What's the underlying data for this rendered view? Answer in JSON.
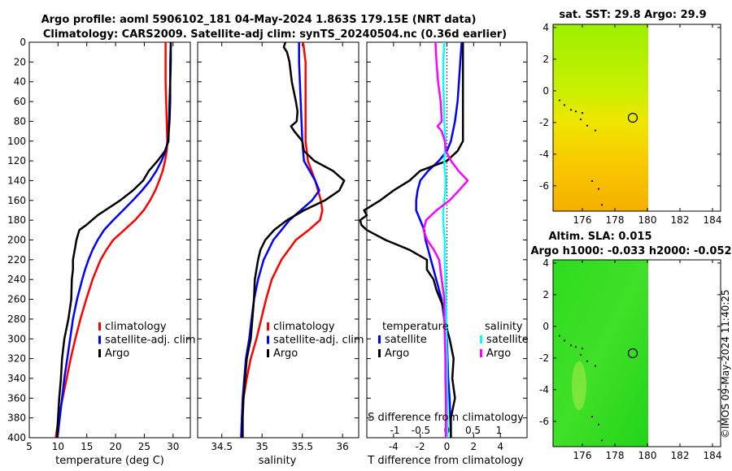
{
  "header": {
    "line1": "Argo profile: aoml 5906102_181 04-May-2024 1.863S 179.15E (NRT data)",
    "line2": "Climatology: CARS2009. Satellite-adj clim: synTS_20240504.nc (0.36d earlier)"
  },
  "stamp": "©IMOS 09-May-2024 11:40:25",
  "colors": {
    "climatology": "#ff0000",
    "satellite": "#0000ff",
    "argo": "#000000",
    "sat_s": "#00ffff",
    "argo_s": "#ff00ff"
  },
  "chart_data": [
    {
      "id": "temperature",
      "type": "line",
      "xlabel": "temperature (deg C)",
      "xlim": [
        5,
        33
      ],
      "ylim": [
        0,
        400
      ],
      "xticks": [
        5,
        10,
        15,
        20,
        25,
        30
      ],
      "yticks": [
        0,
        20,
        40,
        60,
        80,
        100,
        120,
        140,
        160,
        180,
        200,
        220,
        240,
        260,
        280,
        300,
        320,
        340,
        360,
        380,
        400
      ],
      "legend": [
        "climatology",
        "satellite-adj. clim",
        "Argo"
      ],
      "series": [
        {
          "name": "climatology",
          "color": "#ff0000",
          "depth": [
            0,
            20,
            40,
            60,
            80,
            100,
            110,
            120,
            130,
            140,
            150,
            160,
            170,
            180,
            190,
            200,
            210,
            220,
            230,
            240,
            260,
            280,
            300,
            320,
            340,
            360,
            380,
            400
          ],
          "values": [
            28.7,
            28.7,
            28.7,
            28.8,
            28.9,
            29.0,
            28.9,
            28.6,
            28.2,
            27.6,
            26.9,
            26.0,
            24.9,
            23.4,
            21.5,
            19.6,
            18.4,
            17.4,
            16.7,
            16.0,
            14.9,
            13.9,
            13.0,
            12.2,
            11.5,
            10.8,
            10.1,
            9.6
          ]
        },
        {
          "name": "satellite-adj. clim",
          "color": "#0000ff",
          "depth": [
            0,
            20,
            40,
            60,
            80,
            100,
            110,
            120,
            130,
            140,
            150,
            160,
            170,
            180,
            190,
            200,
            210,
            220,
            230,
            240,
            260,
            280,
            300,
            320,
            340,
            360,
            380,
            400
          ],
          "values": [
            29.6,
            29.5,
            29.5,
            29.5,
            29.4,
            29.1,
            28.7,
            28.0,
            27.1,
            26.0,
            24.6,
            23.0,
            21.3,
            19.6,
            18.0,
            16.9,
            16.0,
            15.3,
            14.7,
            14.2,
            13.3,
            12.6,
            12.1,
            11.6,
            11.1,
            10.7,
            10.3,
            9.9
          ]
        },
        {
          "name": "Argo",
          "color": "#000000",
          "depth": [
            0,
            20,
            40,
            60,
            80,
            100,
            110,
            120,
            130,
            140,
            150,
            160,
            170,
            175,
            180,
            185,
            190,
            200,
            210,
            220,
            230,
            240,
            260,
            280,
            300,
            320,
            340,
            360,
            380,
            400
          ],
          "values": [
            29.6,
            29.6,
            29.5,
            29.4,
            29.3,
            29.2,
            28.6,
            27.3,
            25.8,
            24.8,
            23.0,
            20.8,
            18.2,
            16.9,
            15.9,
            14.9,
            13.7,
            13.2,
            12.9,
            12.6,
            12.6,
            12.4,
            12.3,
            11.8,
            11.1,
            10.7,
            10.5,
            10.2,
            10.0,
            9.8
          ]
        }
      ]
    },
    {
      "id": "salinity",
      "type": "line",
      "xlabel": "salinity",
      "xlim": [
        34.2,
        36.2
      ],
      "ylim": [
        0,
        400
      ],
      "xticks": [
        34.5,
        35,
        35.5,
        36
      ],
      "legend": [
        "climatology",
        "satellite-adj. clim",
        "Argo"
      ],
      "series": [
        {
          "name": "climatology",
          "color": "#ff0000",
          "depth": [
            0,
            20,
            40,
            60,
            80,
            100,
            120,
            140,
            160,
            170,
            180,
            190,
            200,
            220,
            240,
            260,
            280,
            300,
            320,
            340,
            360,
            380,
            400
          ],
          "values": [
            35.51,
            35.54,
            35.54,
            35.54,
            35.54,
            35.54,
            35.57,
            35.66,
            35.73,
            35.75,
            35.72,
            35.58,
            35.42,
            35.24,
            35.12,
            35.05,
            34.99,
            34.93,
            34.86,
            34.81,
            34.77,
            34.75,
            34.74
          ]
        },
        {
          "name": "satellite-adj. clim",
          "color": "#0000ff",
          "depth": [
            0,
            20,
            40,
            60,
            80,
            100,
            120,
            140,
            150,
            160,
            170,
            180,
            190,
            200,
            220,
            240,
            260,
            280,
            300,
            320,
            340,
            360,
            380,
            400
          ],
          "values": [
            35.46,
            35.46,
            35.47,
            35.48,
            35.49,
            35.5,
            35.52,
            35.66,
            35.71,
            35.62,
            35.48,
            35.34,
            35.24,
            35.14,
            35.02,
            34.95,
            34.9,
            34.87,
            34.84,
            34.8,
            34.78,
            34.76,
            34.75,
            34.74
          ]
        },
        {
          "name": "Argo",
          "color": "#000000",
          "depth": [
            0,
            5,
            10,
            20,
            40,
            60,
            70,
            80,
            85,
            90,
            100,
            110,
            120,
            130,
            140,
            150,
            160,
            170,
            180,
            190,
            200,
            210,
            220,
            240,
            260,
            280,
            300,
            320,
            340,
            360,
            380,
            400
          ],
          "values": [
            35.29,
            35.27,
            35.31,
            35.34,
            35.37,
            35.42,
            35.44,
            35.43,
            35.36,
            35.4,
            35.5,
            35.52,
            35.65,
            35.88,
            36.02,
            35.96,
            35.78,
            35.52,
            35.31,
            35.15,
            35.04,
            34.98,
            34.95,
            34.91,
            34.9,
            34.88,
            34.86,
            34.81,
            34.79,
            34.77,
            34.76,
            34.76
          ]
        }
      ]
    },
    {
      "id": "difference",
      "type": "line",
      "xlabel": "T difference from climatology",
      "xlabel2": "S difference from climatology",
      "xlim": [
        -6,
        6
      ],
      "ylim": [
        0,
        400
      ],
      "xticks": [
        -4,
        -2,
        0,
        2,
        4
      ],
      "xticks2": [
        -1,
        -0.5,
        0,
        0.5,
        1
      ],
      "xtick2_labels": [
        "-1",
        "-0.5",
        "0",
        "0.5",
        "1"
      ],
      "legend_titles": [
        "temperature",
        "salinity"
      ],
      "legend_left": [
        "satellite",
        "Argo"
      ],
      "legend_right": [
        "satellite",
        "Argo"
      ],
      "series": [
        {
          "name": "T satellite",
          "color": "#0000ff",
          "depth": [
            0,
            20,
            40,
            60,
            80,
            100,
            110,
            120,
            130,
            140,
            150,
            160,
            170,
            180,
            190,
            200,
            210,
            220,
            230,
            240,
            260,
            280,
            300,
            320,
            340,
            360,
            380,
            400
          ],
          "values": [
            1.1,
            1.0,
            0.9,
            0.8,
            0.6,
            0.3,
            0.0,
            -0.6,
            -1.4,
            -2.0,
            -2.2,
            -2.3,
            -2.3,
            -2.0,
            -1.7,
            -1.6,
            -1.4,
            -1.2,
            -1.0,
            -0.8,
            -0.4,
            -0.2,
            0.0,
            0.05,
            0.1,
            0.2,
            0.25,
            0.3
          ]
        },
        {
          "name": "T Argo",
          "color": "#000000",
          "depth": [
            0,
            20,
            40,
            60,
            80,
            100,
            110,
            120,
            130,
            140,
            150,
            160,
            170,
            175,
            180,
            185,
            190,
            200,
            210,
            220,
            230,
            240,
            250,
            260,
            270,
            280,
            300,
            320,
            340,
            360,
            380,
            400
          ],
          "values": [
            1.2,
            1.2,
            1.2,
            1.2,
            1.2,
            1.2,
            0.8,
            0.0,
            -2.0,
            -2.8,
            -4.0,
            -5.0,
            -6.2,
            -6.0,
            -6.5,
            -6.4,
            -6.0,
            -4.6,
            -2.8,
            -1.5,
            -1.5,
            -1.0,
            -0.8,
            -0.5,
            -0.2,
            -0.2,
            0.2,
            0.5,
            0.4,
            0.6,
            0.3,
            0.3
          ]
        },
        {
          "name": "S satellite",
          "color": "#00ffff",
          "depth": [
            0,
            20,
            40,
            60,
            80,
            100,
            110,
            120,
            130,
            140,
            150,
            160,
            170,
            180,
            190,
            200,
            220,
            240,
            260,
            280,
            300,
            320,
            340,
            360,
            380,
            400
          ],
          "values": [
            -0.05,
            -0.07,
            -0.07,
            -0.06,
            -0.05,
            -0.03,
            -0.04,
            -0.05,
            -0.04,
            -0.02,
            -0.03,
            -0.05,
            -0.07,
            -0.07,
            -0.06,
            -0.04,
            -0.04,
            -0.03,
            -0.02,
            -0.01,
            -0.01,
            0.0,
            0.0,
            0.01,
            0.01,
            0.01
          ]
        },
        {
          "name": "S Argo",
          "color": "#ff00ff",
          "depth": [
            0,
            20,
            40,
            60,
            80,
            85,
            90,
            100,
            110,
            120,
            130,
            140,
            150,
            160,
            170,
            180,
            190,
            200,
            210,
            220,
            240,
            260,
            280,
            300,
            320,
            340,
            360,
            380,
            400
          ],
          "values": [
            -0.22,
            -0.2,
            -0.17,
            -0.12,
            -0.1,
            -0.18,
            -0.1,
            -0.04,
            -0.02,
            0.08,
            0.22,
            0.4,
            0.23,
            0.05,
            -0.2,
            -0.4,
            -0.45,
            -0.38,
            -0.25,
            -0.15,
            -0.1,
            -0.05,
            -0.05,
            -0.04,
            -0.03,
            -0.03,
            -0.02,
            -0.02,
            -0.02
          ]
        }
      ]
    },
    {
      "id": "sst_map",
      "type": "heatmap",
      "title": "sat. SST: 29.8 Argo: 29.9",
      "xlim": [
        174.2,
        184.5
      ],
      "ylim": [
        -7.6,
        4.2
      ],
      "xticks": [
        176,
        178,
        180,
        182,
        184
      ],
      "yticks": [
        -6,
        -4,
        -2,
        0,
        2,
        4
      ],
      "data_xlim": [
        174.2,
        180.1
      ],
      "colormap": "yellow-green to orange",
      "float_position": [
        179.15,
        -1.863
      ]
    },
    {
      "id": "sla_map",
      "type": "heatmap",
      "title": "Altim. SLA: 0.015",
      "subtitle": "Argo h1000: -0.033 h2000: -0.052",
      "xlim": [
        174.2,
        184.5
      ],
      "ylim": [
        -7.6,
        4.2
      ],
      "xticks": [
        176,
        178,
        180,
        182,
        184
      ],
      "yticks": [
        -6,
        -4,
        -2,
        0,
        2,
        4
      ],
      "data_xlim": [
        174.2,
        180.1
      ],
      "colormap": "green",
      "float_position": [
        179.15,
        -1.863
      ]
    }
  ]
}
